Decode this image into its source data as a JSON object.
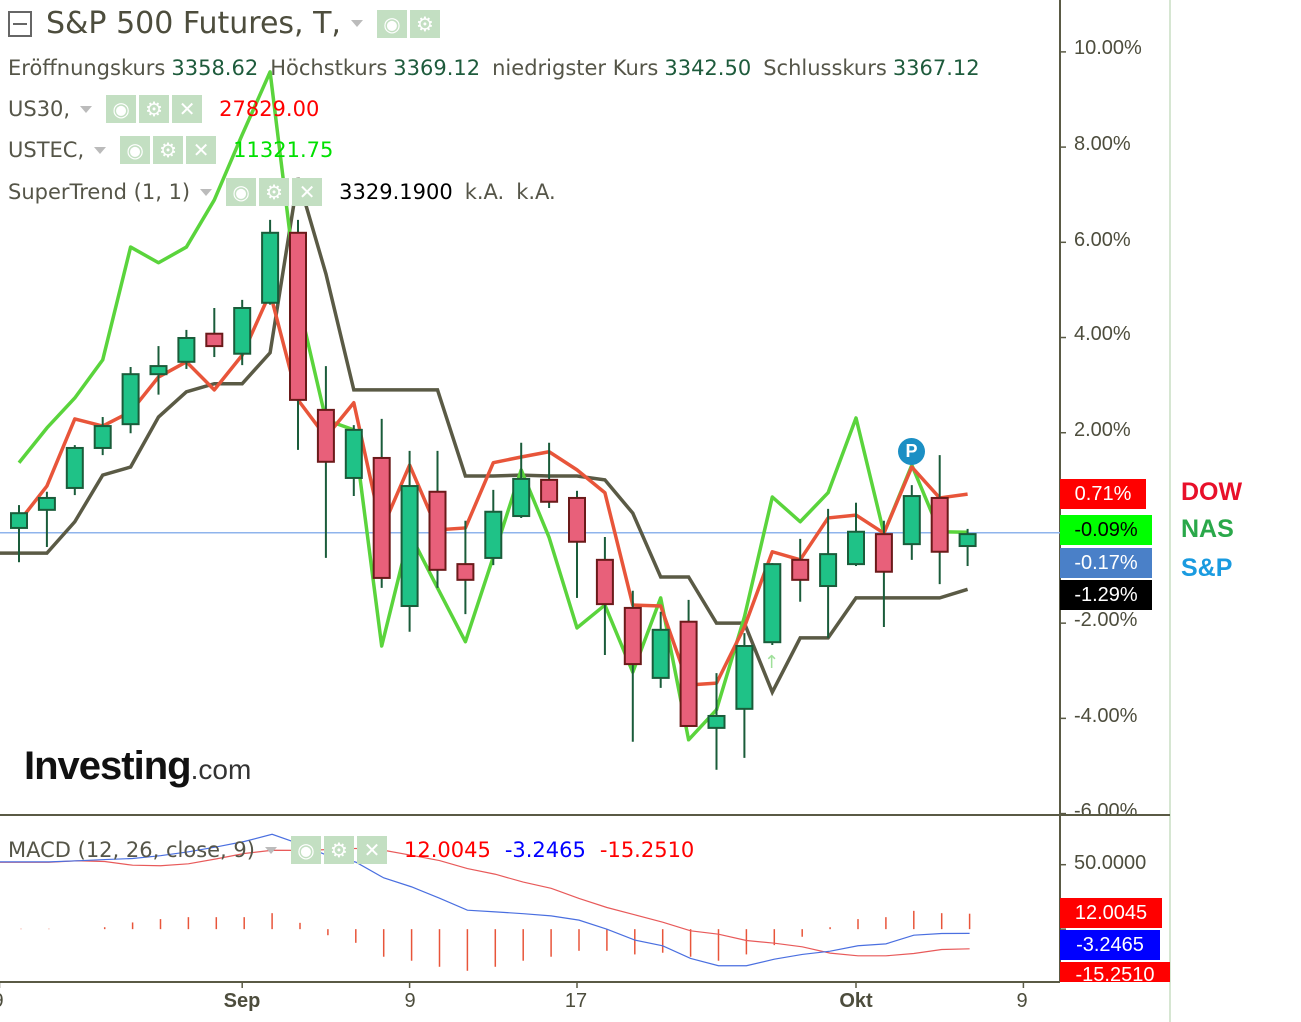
{
  "header": {
    "title": "S&P 500 Futures, T,",
    "collapse_icon": "minus-square-icon",
    "ohlc": [
      {
        "label": "Eröffnungskurs",
        "value": "3358.62"
      },
      {
        "label": "Höchstkurs",
        "value": "3369.12"
      },
      {
        "label": "niedrigster Kurs",
        "value": "3342.50"
      },
      {
        "label": "Schlusskurs",
        "value": "3367.12"
      }
    ]
  },
  "indicators": [
    {
      "name": "US30,",
      "value": "27829.00",
      "color": "#ff0000"
    },
    {
      "name": "USTEC,",
      "value": "11321.75",
      "color": "#00e000"
    },
    {
      "name": "SuperTrend (1, 1)",
      "value": "3329.1900",
      "extra1": "k.A.",
      "extra2": "k.A.",
      "color": "#000000"
    }
  ],
  "macd_header": {
    "name": "MACD (12, 26, close, 9)",
    "values": [
      {
        "text": "12.0045",
        "color": "#ff0000"
      },
      {
        "text": "-3.2465",
        "color": "#0000ff"
      },
      {
        "text": "-15.2510",
        "color": "#ff0000"
      }
    ]
  },
  "price_axis": {
    "ticks": [
      "10.00%",
      "8.00%",
      "6.00%",
      "4.00%",
      "2.00%",
      "-2.00%",
      "-4.00%",
      "-6.00%"
    ],
    "badges": [
      {
        "text": "0.71%",
        "bg": "#ff0000",
        "fg": "#ffffff"
      },
      {
        "text": "-0.09%",
        "bg": "#00ff00",
        "fg": "#000000"
      },
      {
        "text": "-0.17%",
        "bg": "#4a80c8",
        "fg": "#ffffff"
      },
      {
        "text": "-1.29%",
        "bg": "#000000",
        "fg": "#ffffff"
      }
    ]
  },
  "macd_axis": {
    "ticks": [
      "50.0000"
    ],
    "badges": [
      {
        "text": "12.0045",
        "bg": "#ff0000",
        "fg": "#ffffff"
      },
      {
        "text": "-3.2465",
        "bg": "#0000ff",
        "fg": "#ffffff"
      },
      {
        "text": "-15.2510",
        "bg": "#ff0000",
        "fg": "#ffffff"
      }
    ]
  },
  "legend": [
    {
      "label": "DOW",
      "color": "#e8102a"
    },
    {
      "label": "NAS",
      "color": "#2aa84a"
    },
    {
      "label": "S&P",
      "color": "#1a9be0"
    }
  ],
  "x_axis": {
    "ticks": [
      {
        "index": -0.7,
        "label": "9",
        "bold": false
      },
      {
        "index": 8,
        "label": "Sep",
        "bold": true
      },
      {
        "index": 14,
        "label": "9",
        "bold": false
      },
      {
        "index": 20,
        "label": "17",
        "bold": false
      },
      {
        "index": 30,
        "label": "Okt",
        "bold": true
      },
      {
        "index": 36,
        "label": "9",
        "bold": false
      }
    ]
  },
  "logo": {
    "main": "Investing",
    "suffix": ".com"
  },
  "markers": {
    "pivot": {
      "index": 32,
      "label": "P",
      "color": "#1b8fc4"
    },
    "arrow_up": {
      "index": 27,
      "glyph": "↑"
    }
  },
  "chart_data": [
    {
      "type": "candlestick",
      "ylabel_unit": "%",
      "ylim": [
        -6.03,
        11.09
      ],
      "grid": false,
      "current_line": -0.1,
      "up_color": "#1fc287",
      "down_color": "#e8607a",
      "candles_ohlc": [
        [
          0.0,
          0.48,
          -0.72,
          0.31
        ],
        [
          0.38,
          0.76,
          -0.4,
          0.63
        ],
        [
          0.84,
          1.74,
          0.69,
          1.68
        ],
        [
          1.68,
          2.33,
          1.53,
          2.14
        ],
        [
          2.18,
          3.38,
          1.99,
          3.23
        ],
        [
          3.23,
          3.82,
          2.8,
          3.4
        ],
        [
          3.49,
          4.16,
          3.34,
          3.99
        ],
        [
          4.08,
          4.62,
          3.59,
          3.82
        ],
        [
          3.66,
          4.79,
          3.42,
          4.62
        ],
        [
          4.73,
          6.47,
          4.69,
          6.2
        ],
        [
          6.2,
          6.47,
          1.64,
          2.69
        ],
        [
          2.48,
          3.4,
          -0.63,
          1.39
        ],
        [
          1.05,
          2.16,
          0.67,
          2.06
        ],
        [
          1.47,
          2.29,
          -1.26,
          -1.05
        ],
        [
          -1.64,
          1.62,
          -2.18,
          0.88
        ],
        [
          0.76,
          1.62,
          -1.26,
          -0.88
        ],
        [
          -0.76,
          0.15,
          -1.81,
          -1.09
        ],
        [
          -0.63,
          0.8,
          -0.78,
          0.34
        ],
        [
          0.25,
          1.79,
          0.21,
          1.03
        ],
        [
          1.01,
          1.79,
          0.42,
          0.55
        ],
        [
          0.63,
          0.78,
          -1.47,
          -0.29
        ],
        [
          -0.67,
          -0.19,
          -2.67,
          -1.6
        ],
        [
          -1.68,
          -1.32,
          -4.49,
          -2.86
        ],
        [
          -3.15,
          -1.76,
          -3.36,
          -2.14
        ],
        [
          -1.97,
          -1.51,
          -4.16,
          -4.16
        ],
        [
          -4.2,
          -3.05,
          -5.08,
          -3.95
        ],
        [
          -3.8,
          -2.21,
          -4.83,
          -2.48
        ],
        [
          -2.4,
          -0.74,
          -2.46,
          -0.76
        ],
        [
          -0.67,
          -0.23,
          -1.55,
          -1.09
        ],
        [
          -1.22,
          0.4,
          -2.31,
          -0.55
        ],
        [
          -0.76,
          0.53,
          -0.8,
          -0.08
        ],
        [
          -0.13,
          0.15,
          -2.08,
          -0.92
        ],
        [
          -0.34,
          0.9,
          -0.67,
          0.67
        ],
        [
          0.63,
          1.53,
          -1.18,
          -0.5
        ],
        [
          -0.38,
          -0.02,
          -0.8,
          -0.13
        ]
      ],
      "series": [
        {
          "name": "DOW",
          "color": "#e8553a",
          "values": [
            0.13,
            0.88,
            2.29,
            2.14,
            2.44,
            3.17,
            3.49,
            2.9,
            3.63,
            4.94,
            2.69,
            1.91,
            2.63,
            -0.04,
            1.32,
            -0.04,
            0.0,
            1.37,
            1.49,
            1.6,
            1.22,
            0.74,
            -1.62,
            -1.64,
            -3.3,
            -3.26,
            -2.08,
            -0.5,
            -0.67,
            0.21,
            0.27,
            -0.11,
            1.28,
            0.63,
            0.71
          ]
        },
        {
          "name": "NAS",
          "color": "#5ad43c",
          "values": [
            1.37,
            2.1,
            2.73,
            3.53,
            5.9,
            5.57,
            5.9,
            6.89,
            8.26,
            9.58,
            4.79,
            2.27,
            2.06,
            -2.48,
            -0.11,
            -1.26,
            -2.39,
            -0.61,
            1.22,
            -0.2,
            -2.1,
            -1.62,
            -3.03,
            -1.47,
            -4.45,
            -3.82,
            -1.87,
            0.65,
            0.13,
            0.74,
            2.31,
            -0.11,
            1.32,
            -0.08,
            -0.09
          ]
        },
        {
          "name": "SuperTrend (1, 1)",
          "color": "#5a5a45",
          "values": [
            -0.53,
            -0.53,
            0.13,
            1.11,
            1.28,
            2.33,
            2.86,
            3.03,
            3.03,
            3.68,
            7.35,
            5.34,
            2.9,
            2.9,
            2.9,
            2.9,
            1.09,
            1.09,
            1.11,
            1.09,
            1.09,
            1.01,
            0.31,
            -1.03,
            -1.03,
            -2.0,
            -2.0,
            -3.45,
            -2.31,
            -2.31,
            -1.47,
            -1.47,
            -1.47,
            -1.47,
            -1.29
          ]
        }
      ]
    },
    {
      "type": "macd",
      "ylim": [
        -41,
        87
      ],
      "series": [
        {
          "name": "MACD",
          "color": "#4a6fe0",
          "values": [
            52.2,
            52.2,
            53,
            54,
            54.8,
            57,
            60,
            63.8,
            68,
            73.6,
            66,
            57,
            52,
            39.8,
            32.8,
            24,
            14.7,
            13.4,
            12,
            10.3,
            7.0,
            0,
            -8.5,
            -12.9,
            -22.7,
            -28.4,
            -28.4,
            -23.3,
            -19.6,
            -17.1,
            -12.9,
            -11.4,
            -4.7,
            -3.4,
            -3.25
          ]
        },
        {
          "name": "Signal",
          "color": "#e85a5a",
          "values": [
            51.9,
            51.9,
            53,
            52.5,
            49.6,
            49.2,
            50.7,
            54.5,
            58.7,
            61.2,
            61.1,
            61.7,
            62.6,
            61.2,
            57.3,
            53.2,
            47.0,
            42.6,
            36.5,
            31.7,
            23.8,
            16.8,
            11.1,
            5.4,
            -1.3,
            -3.9,
            -8.8,
            -10.9,
            -13.7,
            -18.6,
            -20.7,
            -20.7,
            -18.9,
            -15.8,
            -15.25
          ]
        },
        {
          "name": "Histogram",
          "color": "#e8553a",
          "values": [
            0.3,
            0.3,
            0,
            1.5,
            5.2,
            7.8,
            9.3,
            9.3,
            9.3,
            12.4,
            4.9,
            -4.7,
            -10.6,
            -21.4,
            -24.5,
            -29.2,
            -32.3,
            -29.2,
            -24.5,
            -21.4,
            -16.8,
            -16.8,
            -19.6,
            -18.3,
            -21.4,
            -24.5,
            -19.6,
            -12.4,
            -5.9,
            1.5,
            7.8,
            9.3,
            14.2,
            12.4,
            12.0
          ]
        }
      ]
    }
  ]
}
